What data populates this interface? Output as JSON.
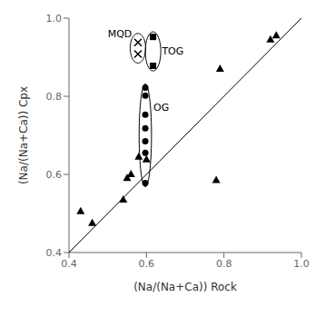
{
  "chart_data": {
    "type": "scatter",
    "x_label": "(Na/(Na+Ca)) Rock",
    "y_label": "(Na/(Na+Ca)) Cpx",
    "xlim": [
      0.4,
      1.0
    ],
    "ylim": [
      0.4,
      1.0
    ],
    "xticks": [
      0.4,
      0.6,
      0.8,
      {
        "value": 1.0,
        "label": "1.0"
      }
    ],
    "yticks": [
      0.4,
      0.6,
      0.8,
      {
        "value": 1.0,
        "label": "1.0"
      }
    ],
    "grid": false,
    "series": [
      {
        "type": "line",
        "color": "black",
        "x": [
          0.4,
          1.0
        ],
        "values": [
          0.4,
          1.0
        ]
      },
      {
        "type": "scatter",
        "marker": "triangle",
        "color": "black",
        "x": [
          0.43,
          0.46,
          0.54,
          0.56,
          0.55,
          0.58,
          0.6,
          0.78,
          0.79,
          0.92,
          0.935
        ],
        "values": [
          0.505,
          0.475,
          0.535,
          0.6,
          0.59,
          0.645,
          0.638,
          0.585,
          0.87,
          0.945,
          0.955
        ]
      },
      {
        "type": "scatter",
        "marker": "x",
        "color": "black",
        "x": [
          0.578,
          0.578
        ],
        "values": [
          0.938,
          0.908
        ]
      },
      {
        "type": "scatter",
        "marker": "square",
        "color": "black",
        "x": [
          0.617,
          0.617
        ],
        "values": [
          0.952,
          0.878
        ]
      },
      {
        "type": "scatter",
        "marker": "circle",
        "color": "black",
        "x": [
          0.597,
          0.597,
          0.597,
          0.597,
          0.597,
          0.597,
          0.597
        ],
        "values": [
          0.822,
          0.802,
          0.753,
          0.718,
          0.685,
          0.655,
          0.578
        ]
      }
    ],
    "ellipses": [
      {
        "cx": 0.578,
        "cy": 0.923,
        "rx": 0.02,
        "ry": 0.038,
        "color": "black"
      },
      {
        "cx": 0.617,
        "cy": 0.915,
        "rx": 0.02,
        "ry": 0.05,
        "color": "black"
      },
      {
        "cx": 0.597,
        "cy": 0.7,
        "rx": 0.016,
        "ry": 0.132,
        "color": "black"
      }
    ],
    "annotations": [
      {
        "text": "MQD",
        "x": 0.5,
        "y": 0.96
      },
      {
        "text": "TOG",
        "x": 0.64,
        "y": 0.915
      },
      {
        "text": "OG",
        "x": 0.618,
        "y": 0.77
      }
    ]
  }
}
